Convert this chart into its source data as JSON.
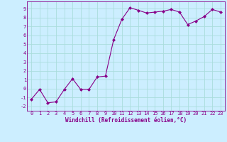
{
  "x": [
    0,
    1,
    2,
    3,
    4,
    5,
    6,
    7,
    8,
    9,
    10,
    11,
    12,
    13,
    14,
    15,
    16,
    17,
    18,
    19,
    20,
    21,
    22,
    23
  ],
  "y": [
    -1.2,
    -0.1,
    -1.6,
    -1.5,
    -0.1,
    1.1,
    -0.1,
    -0.1,
    1.3,
    1.4,
    5.5,
    7.8,
    9.1,
    8.8,
    8.5,
    8.6,
    8.7,
    8.9,
    8.6,
    7.2,
    7.6,
    8.1,
    8.9,
    8.6
  ],
  "line_color": "#880088",
  "marker": "D",
  "marker_size": 2,
  "bg_color": "#cceeff",
  "grid_color": "#aadddd",
  "xlabel": "Windchill (Refroidissement éolien,°C)",
  "xlabel_color": "#880088",
  "tick_color": "#880088",
  "ylim": [
    -2.5,
    9.8
  ],
  "xlim": [
    -0.5,
    23.5
  ],
  "yticks": [
    -2,
    -1,
    0,
    1,
    2,
    3,
    4,
    5,
    6,
    7,
    8,
    9
  ],
  "xticks": [
    0,
    1,
    2,
    3,
    4,
    5,
    6,
    7,
    8,
    9,
    10,
    11,
    12,
    13,
    14,
    15,
    16,
    17,
    18,
    19,
    20,
    21,
    22,
    23
  ],
  "tick_fontsize": 5.0,
  "xlabel_fontsize": 5.5
}
